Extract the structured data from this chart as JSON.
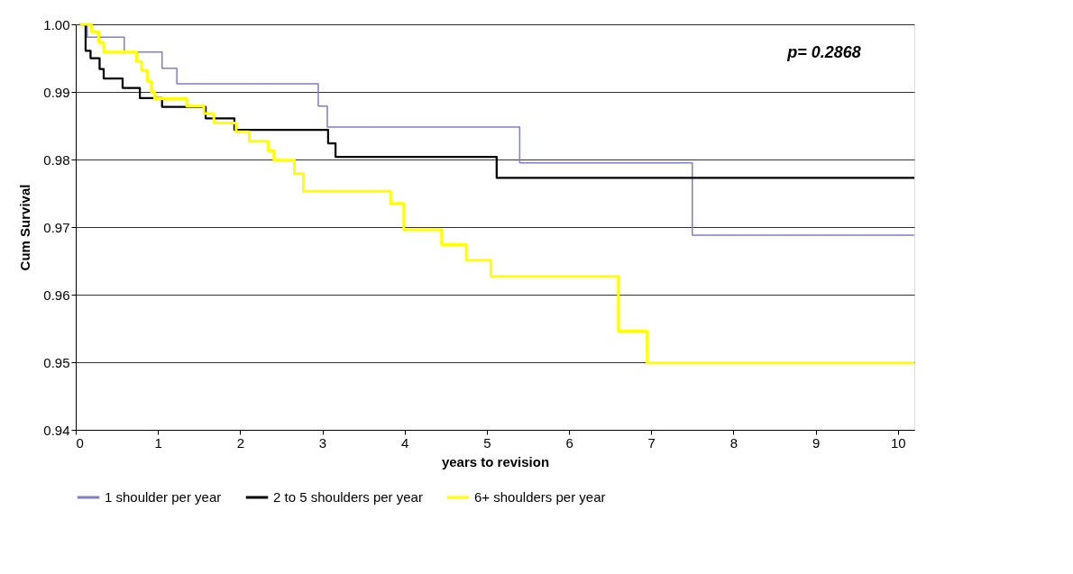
{
  "chart_data": {
    "type": "step",
    "xlabel": "years to revision",
    "ylabel": "Cum Survival",
    "annotations": [
      "p= 0.2868"
    ],
    "xlim": [
      0,
      10.2
    ],
    "xticks": [
      0,
      1,
      2,
      3,
      4,
      5,
      6,
      7,
      8,
      9,
      10
    ],
    "ylim": [
      0.94,
      1.0
    ],
    "yticks": [
      {
        "value": 0.94,
        "label": "0.94"
      },
      {
        "value": 0.95,
        "label": "0.95"
      },
      {
        "value": 0.96,
        "label": "0.96"
      },
      {
        "value": 0.97,
        "label": "0.97"
      },
      {
        "value": 0.98,
        "label": "0.98"
      },
      {
        "value": 0.99,
        "label": "0.99"
      },
      {
        "value": 1.0,
        "label": "1.00"
      }
    ],
    "grid": "y",
    "legend": "bottom",
    "marker": "none",
    "series": [
      {
        "name": "1 shoulder per year",
        "color": "#8080c0",
        "x": [
          0.05,
          0.14,
          0.59,
          1.05,
          1.23,
          2.95,
          3.06,
          5.4,
          7.5,
          10.2
        ],
        "values": [
          1.0,
          0.9981,
          0.9959,
          0.9935,
          0.9912,
          0.9879,
          0.9848,
          0.9795,
          0.9688,
          0.9688
        ]
      },
      {
        "name": "2 to 5 shoulders per year",
        "color": "#000000",
        "x": [
          0.05,
          0.12,
          0.18,
          0.29,
          0.34,
          0.57,
          0.78,
          1.05,
          1.58,
          1.93,
          3.07,
          3.16,
          5.12,
          10.2
        ],
        "values": [
          1.0,
          0.9961,
          0.995,
          0.9934,
          0.992,
          0.9906,
          0.9891,
          0.9878,
          0.9861,
          0.9844,
          0.9824,
          0.9804,
          0.9773,
          0.9773
        ]
      },
      {
        "name": "6+ shoulders per year",
        "color": "#ffff00",
        "x": [
          0.05,
          0.19,
          0.28,
          0.34,
          0.74,
          0.8,
          0.87,
          0.92,
          0.96,
          1.35,
          1.56,
          1.68,
          1.95,
          2.11,
          2.34,
          2.41,
          2.66,
          2.77,
          3.83,
          3.99,
          4.45,
          4.75,
          5.05,
          6.6,
          6.95,
          10.2
        ],
        "values": [
          1.0,
          0.9989,
          0.9973,
          0.9959,
          0.9945,
          0.9932,
          0.9916,
          0.99,
          0.989,
          0.9879,
          0.9868,
          0.9854,
          0.9841,
          0.9827,
          0.9813,
          0.9799,
          0.9779,
          0.9753,
          0.9735,
          0.9696,
          0.9674,
          0.9651,
          0.9627,
          0.9546,
          0.9499,
          0.9499
        ]
      }
    ]
  }
}
